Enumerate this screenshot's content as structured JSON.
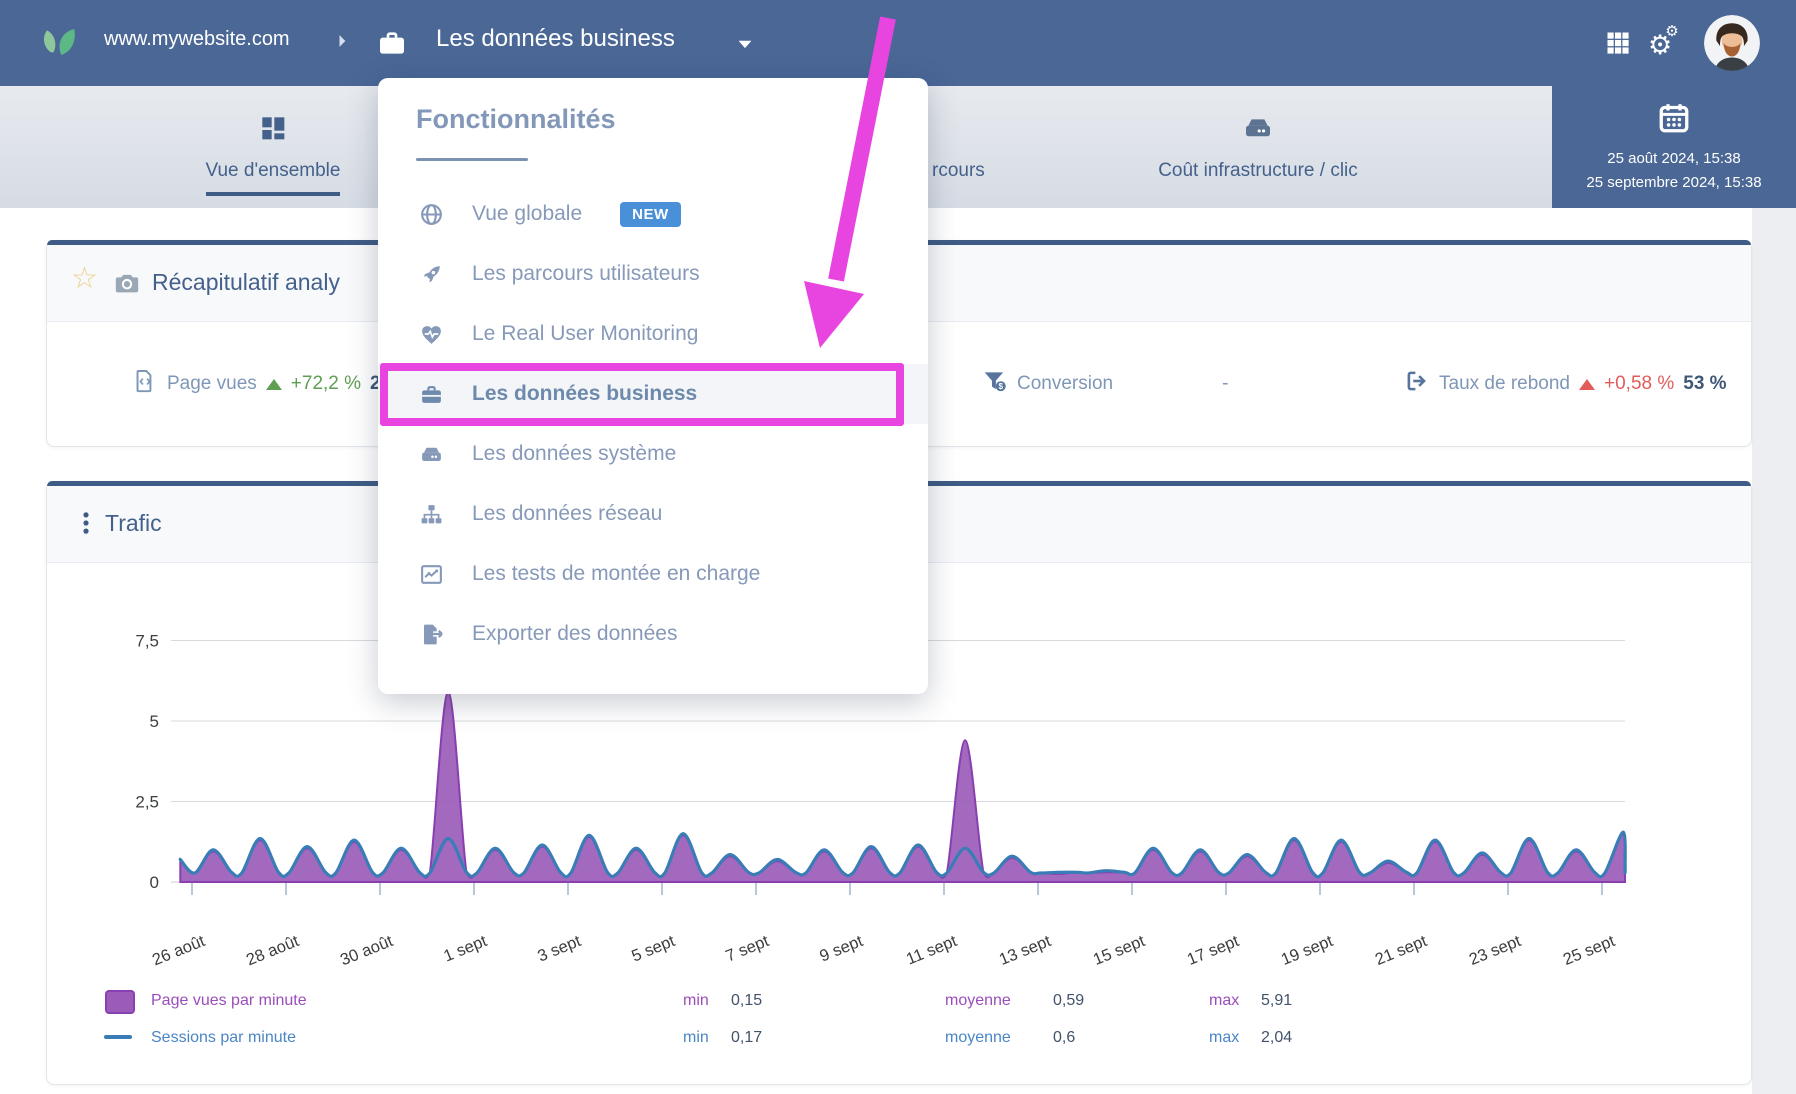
{
  "topbar": {
    "site_url": "www.mywebsite.com",
    "section_title": "Les données business"
  },
  "tabs": [
    {
      "label": "Vue d'ensemble",
      "icon": "th-large",
      "active": true
    },
    {
      "label": "rcours",
      "active": false
    },
    {
      "label": "Coût infrastructure / clic",
      "icon": "hdd",
      "active": false
    }
  ],
  "date_range": {
    "from": "25 août 2024, 15:38",
    "to": "25 septembre 2024, 15:38"
  },
  "dropdown": {
    "heading": "Fonctionnalités",
    "items": [
      {
        "label": "Vue globale",
        "icon": "globe",
        "badge": "NEW"
      },
      {
        "label": "Les parcours utilisateurs",
        "icon": "rocket"
      },
      {
        "label": "Le Real User Monitoring",
        "icon": "heart-pulse"
      },
      {
        "label": "Les données business",
        "icon": "briefcase",
        "highlighted": true
      },
      {
        "label": "Les données système",
        "icon": "hdd"
      },
      {
        "label": "Les données réseau",
        "icon": "sitemap"
      },
      {
        "label": "Les tests de montée en charge",
        "icon": "chart-line"
      },
      {
        "label": "Exporter des données",
        "icon": "file-export"
      }
    ]
  },
  "recap": {
    "title": "Récapitulatif analy",
    "stats": [
      {
        "label": "Page vues",
        "icon": "file-code",
        "trend": "up",
        "delta": "+72,2 %",
        "value": "2"
      },
      {
        "label": "Conversion",
        "icon": "funnel-dollar",
        "value": "-"
      },
      {
        "label": "Taux de rebond",
        "icon": "sign-out",
        "trend": "up",
        "delta": "+0,58 %",
        "value": "53 %"
      }
    ]
  },
  "trafic": {
    "title": "Trafic"
  },
  "chart_data": {
    "type": "area",
    "title": "Trafic",
    "x_tick_labels": [
      "26 août",
      "28 août",
      "30 août",
      "1 sept",
      "3 sept",
      "5 sept",
      "7 sept",
      "9 sept",
      "11 sept",
      "13 sept",
      "15 sept",
      "17 sept",
      "19 sept",
      "21 sept",
      "23 sept",
      "25 sept"
    ],
    "y_tick_labels": [
      "0",
      "2,5",
      "5",
      "7,5"
    ],
    "y_tick_values": [
      0,
      2.5,
      5,
      7.5
    ],
    "ylim": [
      0,
      8.3
    ],
    "day_count": 31,
    "baseline": 0.3,
    "grid": true,
    "legend_position": "bottom",
    "series": [
      {
        "name": "Page vues par minute",
        "style": "area",
        "fill": "#9a5cb8",
        "stroke": "#8a3fb0",
        "min": 0.15,
        "avg": 0.59,
        "max": 5.91,
        "day_peaks": [
          0.95,
          1.3,
          1.05,
          1.25,
          1.0,
          5.91,
          1.0,
          1.1,
          1.4,
          1.0,
          1.45,
          0.8,
          0.65,
          0.95,
          1.05,
          1.1,
          4.4,
          0.75,
          0.25,
          0.3,
          1.0,
          0.95,
          0.8,
          1.3,
          1.25,
          0.6,
          1.25,
          0.85,
          1.3,
          0.95,
          1.5
        ]
      },
      {
        "name": "Sessions par minute",
        "style": "line",
        "stroke": "#3a7db6",
        "min": 0.17,
        "avg": 0.6,
        "max": 2.04,
        "day_peaks": [
          1.0,
          1.35,
          1.1,
          1.3,
          1.05,
          1.35,
          1.05,
          1.15,
          1.45,
          1.05,
          1.5,
          0.85,
          0.7,
          1.0,
          1.1,
          1.15,
          1.05,
          0.8,
          0.3,
          0.35,
          1.05,
          1.0,
          0.85,
          1.35,
          1.3,
          0.65,
          1.3,
          0.9,
          1.35,
          1.0,
          1.55
        ]
      }
    ]
  },
  "legend": [
    {
      "name": "Page vues par minute",
      "color": "#9a5cb8",
      "border": "#8a3fb0",
      "text_color": "#9b4dbb",
      "min_label": "min",
      "min": "0,15",
      "moyenne_label": "moyenne",
      "moyenne": "0,59",
      "max_label": "max",
      "max": "5,91"
    },
    {
      "name": "Sessions par minute",
      "color": "#3a7db6",
      "text_color": "#4a86c5",
      "min_label": "min",
      "min": "0,17",
      "moyenne_label": "moyenne",
      "moyenne": "0,6",
      "max_label": "max",
      "max": "2,04"
    }
  ],
  "colors": {
    "topbar": "#4a6796",
    "accent_blue": "#3e5c85",
    "menu_text": "#8699b9",
    "highlight_magenta": "#e845e0",
    "badge_blue": "#4a90d9",
    "green": "#5f9e53",
    "red": "#e25c5c",
    "purple_fill": "#9a5cb8",
    "purple_stroke": "#8a3fb0",
    "blue_line": "#3a7db6"
  }
}
